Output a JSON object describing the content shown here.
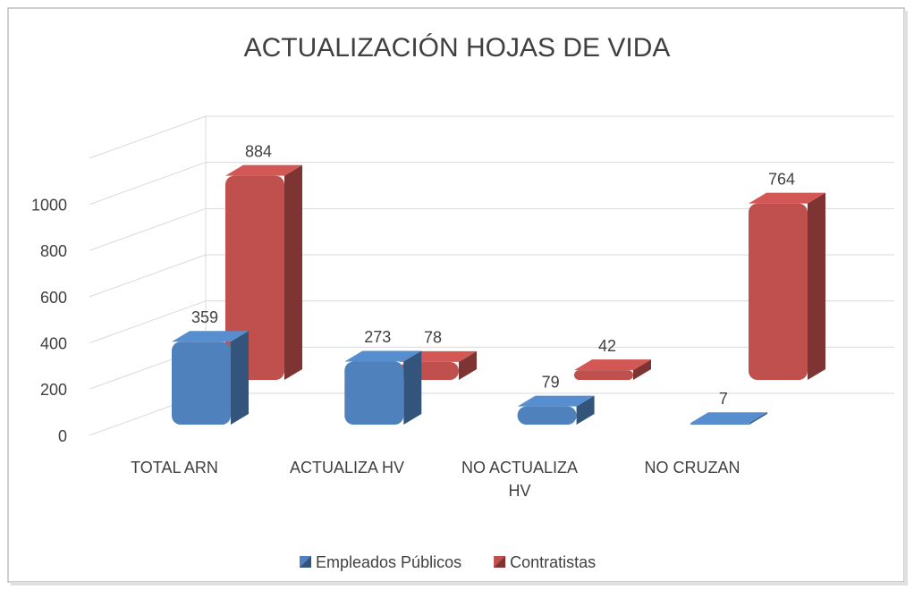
{
  "chart_data": {
    "type": "bar3d",
    "title": "ACTUALIZACIÓN HOJAS DE VIDA",
    "categories": [
      "TOTAL ARN",
      "ACTUALIZA HV",
      "NO ACTUALIZA HV",
      "NO CRUZAN"
    ],
    "series": [
      {
        "name": "Empleados Públicos",
        "color": "#4f81bd",
        "values": [
          359,
          273,
          79,
          7
        ]
      },
      {
        "name": "Contratistas",
        "color": "#c0504d",
        "values": [
          884,
          78,
          42,
          764
        ]
      }
    ],
    "ylim": [
      0,
      1200
    ],
    "yticks": [
      0,
      200,
      400,
      600,
      800,
      1000
    ],
    "grid": true,
    "legend": "bottom"
  }
}
